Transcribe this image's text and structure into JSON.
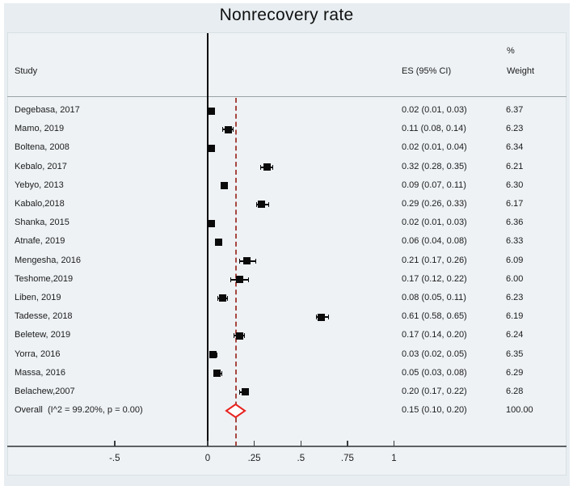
{
  "title": "Nonrecovery rate",
  "columns": {
    "study": "Study",
    "es": "ES (95% CI)",
    "percent": "%",
    "weight": "Weight"
  },
  "colors": {
    "background_outer": "#e7edf0",
    "background_panel": "#eef2f5",
    "marker": "#0a0a0a",
    "diamond_stroke": "#e8231f",
    "diamond_fill": "#ffffff",
    "dashed_line": "#a6463f",
    "axis_line": "#5d6164",
    "text": "#1c1c1c"
  },
  "chart_data": {
    "type": "forest",
    "title": "Nonrecovery rate",
    "xlabel": "",
    "zero_line": 0,
    "overall_line": 0.15,
    "x_ticks": [
      {
        "value": -0.5,
        "label": "-.5"
      },
      {
        "value": 0,
        "label": "0"
      },
      {
        "value": 0.25,
        "label": ".25"
      },
      {
        "value": 0.5,
        "label": ".5"
      },
      {
        "value": 0.75,
        "label": ".75"
      },
      {
        "value": 1,
        "label": "1"
      }
    ],
    "studies": [
      {
        "study": "Degebasa, 2017",
        "es": 0.02,
        "ci_low": 0.01,
        "ci_high": 0.03,
        "es_text": "0.02 (0.01, 0.03)",
        "weight": "6.37"
      },
      {
        "study": "Mamo, 2019",
        "es": 0.11,
        "ci_low": 0.08,
        "ci_high": 0.14,
        "es_text": "0.11 (0.08, 0.14)",
        "weight": "6.23"
      },
      {
        "study": "Boltena, 2008",
        "es": 0.02,
        "ci_low": 0.01,
        "ci_high": 0.04,
        "es_text": "0.02 (0.01, 0.04)",
        "weight": "6.34"
      },
      {
        "study": "Kebalo, 2017",
        "es": 0.32,
        "ci_low": 0.28,
        "ci_high": 0.35,
        "es_text": "0.32 (0.28, 0.35)",
        "weight": "6.21"
      },
      {
        "study": "Yebyo, 2013",
        "es": 0.09,
        "ci_low": 0.07,
        "ci_high": 0.11,
        "es_text": "0.09 (0.07, 0.11)",
        "weight": "6.30"
      },
      {
        "study": "Kabalo,2018",
        "es": 0.29,
        "ci_low": 0.26,
        "ci_high": 0.33,
        "es_text": "0.29 (0.26, 0.33)",
        "weight": "6.17"
      },
      {
        "study": "Shanka, 2015",
        "es": 0.02,
        "ci_low": 0.01,
        "ci_high": 0.03,
        "es_text": "0.02 (0.01, 0.03)",
        "weight": "6.36"
      },
      {
        "study": "Atnafe, 2019",
        "es": 0.06,
        "ci_low": 0.04,
        "ci_high": 0.08,
        "es_text": "0.06 (0.04, 0.08)",
        "weight": "6.33"
      },
      {
        "study": "Mengesha, 2016",
        "es": 0.21,
        "ci_low": 0.17,
        "ci_high": 0.26,
        "es_text": "0.21 (0.17, 0.26)",
        "weight": "6.09"
      },
      {
        "study": "Teshome,2019",
        "es": 0.17,
        "ci_low": 0.12,
        "ci_high": 0.22,
        "es_text": "0.17 (0.12, 0.22)",
        "weight": "6.00"
      },
      {
        "study": "Liben, 2019",
        "es": 0.08,
        "ci_low": 0.05,
        "ci_high": 0.11,
        "es_text": "0.08 (0.05, 0.11)",
        "weight": "6.23"
      },
      {
        "study": "Tadesse, 2018",
        "es": 0.61,
        "ci_low": 0.58,
        "ci_high": 0.65,
        "es_text": "0.61 (0.58, 0.65)",
        "weight": "6.19"
      },
      {
        "study": "Beletew, 2019",
        "es": 0.17,
        "ci_low": 0.14,
        "ci_high": 0.2,
        "es_text": "0.17 (0.14, 0.20)",
        "weight": "6.24"
      },
      {
        "study": "Yorra, 2016",
        "es": 0.03,
        "ci_low": 0.02,
        "ci_high": 0.05,
        "es_text": "0.03 (0.02, 0.05)",
        "weight": "6.35"
      },
      {
        "study": "Massa, 2016",
        "es": 0.05,
        "ci_low": 0.03,
        "ci_high": 0.08,
        "es_text": "0.05 (0.03, 0.08)",
        "weight": "6.29"
      },
      {
        "study": "Belachew,2007",
        "es": 0.2,
        "ci_low": 0.17,
        "ci_high": 0.22,
        "es_text": "0.20 (0.17, 0.22)",
        "weight": "6.28"
      }
    ],
    "overall": {
      "study": "Overall  (I^2 = 99.20%, p = 0.00)",
      "es": 0.15,
      "ci_low": 0.1,
      "ci_high": 0.2,
      "es_text": "0.15 (0.10, 0.20)",
      "weight": "100.00"
    }
  }
}
